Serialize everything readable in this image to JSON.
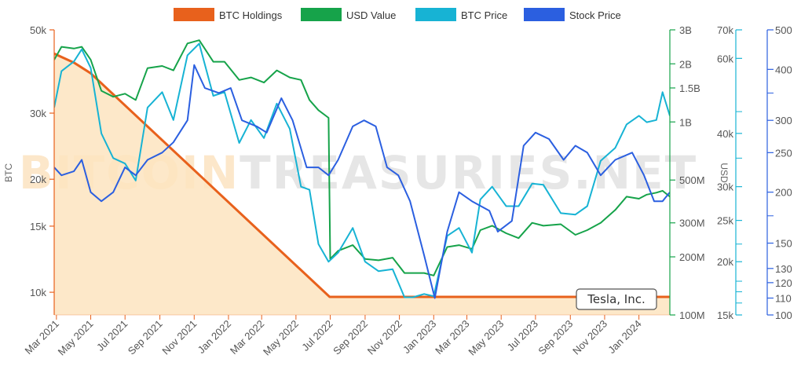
{
  "chart_data": {
    "type": "line",
    "legend_position": "top",
    "legend": [
      {
        "name": "BTC Holdings",
        "color": "#e8611c"
      },
      {
        "name": "USD Value",
        "color": "#16a34a"
      },
      {
        "name": "BTC Price",
        "color": "#17b3d4"
      },
      {
        "name": "Stock Price",
        "color": "#2b5fe0"
      }
    ],
    "watermark": {
      "part1": "BITCOIN",
      "part2": "TREASURIES.NET"
    },
    "company_label": "Tesla, Inc.",
    "x_ticks": [
      "Mar 2021",
      "May 2021",
      "Jul 2021",
      "Sep 2021",
      "Nov 2021",
      "Jan 2022",
      "Mar 2022",
      "May 2022",
      "Jul 2022",
      "Sep 2022",
      "Nov 2022",
      "Jan 2023",
      "Mar 2023",
      "May 2023",
      "Jul 2023",
      "Sep 2023",
      "Nov 2023",
      "Jan 2024"
    ],
    "axes": {
      "left": {
        "title": "BTC",
        "scale": "log",
        "color": "#e8611c",
        "range": [
          8700,
          50000
        ],
        "ticks": [
          {
            "v": 10000,
            "label": "10k"
          },
          {
            "v": 15000,
            "label": "15k"
          },
          {
            "v": 20000,
            "label": "20k"
          },
          {
            "v": 30000,
            "label": "30k"
          },
          {
            "v": 50000,
            "label": "50k"
          }
        ]
      },
      "usd": {
        "title": "USD",
        "scale": "log",
        "color": "#16a34a",
        "range": [
          100000000,
          3000000000
        ],
        "ticks": [
          {
            "v": 3000000000,
            "label": "3B"
          },
          {
            "v": 2000000000,
            "label": "2B"
          },
          {
            "v": 1500000000,
            "label": "1.5B"
          },
          {
            "v": 1000000000,
            "label": "1B"
          },
          {
            "v": 500000000,
            "label": "500M"
          },
          {
            "v": 300000000,
            "label": "300M"
          },
          {
            "v": 200000000,
            "label": "200M"
          },
          {
            "v": 100000000,
            "label": "100M"
          }
        ]
      },
      "btc_price": {
        "scale": "log",
        "color": "#17b3d4",
        "range": [
          15000,
          70000
        ],
        "ticks": [
          {
            "v": 70000,
            "label": "70k"
          },
          {
            "v": 60000,
            "label": "60k"
          },
          {
            "v": 40000,
            "label": "40k"
          },
          {
            "v": 30000,
            "label": "30k"
          },
          {
            "v": 25000,
            "label": "25k"
          },
          {
            "v": 20000,
            "label": "20k"
          },
          {
            "v": 15000,
            "label": "15k"
          }
        ]
      },
      "stock_price": {
        "scale": "log",
        "color": "#2b5fe0",
        "range": [
          100,
          500
        ],
        "ticks": [
          {
            "v": 500,
            "label": "500"
          },
          {
            "v": 400,
            "label": "400"
          },
          {
            "v": 300,
            "label": "300"
          },
          {
            "v": 250,
            "label": "250"
          },
          {
            "v": 200,
            "label": "200"
          },
          {
            "v": 150,
            "label": "150"
          },
          {
            "v": 130,
            "label": "130"
          },
          {
            "v": 120,
            "label": "120"
          },
          {
            "v": 110,
            "label": "110"
          },
          {
            "v": 100,
            "label": "100"
          }
        ]
      }
    },
    "series": [
      {
        "name": "BTC Holdings",
        "axis": "left",
        "type": "area",
        "x": [
          "2021-02-25",
          "2021-04-01",
          "2021-05-01",
          "2022-06-30",
          "2022-07-20",
          "2023-06-01",
          "2024-02-25"
        ],
        "values": [
          43200,
          40900,
          38300,
          9720,
          9720,
          9720,
          9720
        ]
      },
      {
        "name": "USD Value",
        "axis": "usd",
        "x": [
          "2021-02-25",
          "2021-03-10",
          "2021-04-01",
          "2021-04-15",
          "2021-05-01",
          "2021-05-20",
          "2021-06-10",
          "2021-07-01",
          "2021-07-20",
          "2021-08-10",
          "2021-09-05",
          "2021-09-25",
          "2021-10-20",
          "2021-11-10",
          "2021-12-05",
          "2021-12-25",
          "2022-01-20",
          "2022-02-10",
          "2022-03-05",
          "2022-03-28",
          "2022-04-20",
          "2022-05-10",
          "2022-05-25",
          "2022-06-10",
          "2022-06-28",
          "2022-07-01",
          "2022-07-15",
          "2022-08-10",
          "2022-09-01",
          "2022-09-25",
          "2022-10-20",
          "2022-11-10",
          "2022-11-25",
          "2022-12-15",
          "2023-01-01",
          "2023-01-25",
          "2023-02-15",
          "2023-03-10",
          "2023-03-25",
          "2023-04-15",
          "2023-05-10",
          "2023-06-01",
          "2023-06-25",
          "2023-07-15",
          "2023-08-15",
          "2023-09-10",
          "2023-10-01",
          "2023-10-25",
          "2023-11-20",
          "2023-12-10",
          "2024-01-01",
          "2024-01-15",
          "2024-02-01",
          "2024-02-12",
          "2024-02-25"
        ],
        "values": [
          2100000000,
          2450000000,
          2400000000,
          2450000000,
          2100000000,
          1450000000,
          1350000000,
          1400000000,
          1300000000,
          1900000000,
          1950000000,
          1850000000,
          2550000000,
          2650000000,
          2050000000,
          2050000000,
          1650000000,
          1700000000,
          1600000000,
          1850000000,
          1700000000,
          1650000000,
          1300000000,
          1150000000,
          1050000000,
          195000000,
          215000000,
          230000000,
          195000000,
          192000000,
          198000000,
          165000000,
          165000000,
          165000000,
          160000000,
          225000000,
          230000000,
          220000000,
          275000000,
          290000000,
          265000000,
          250000000,
          300000000,
          290000000,
          295000000,
          260000000,
          275000000,
          300000000,
          350000000,
          410000000,
          400000000,
          420000000,
          430000000,
          440000000,
          410000000
        ]
      },
      {
        "name": "BTC Price",
        "axis": "btc_price",
        "x": [
          "2021-02-25",
          "2021-03-10",
          "2021-04-01",
          "2021-04-15",
          "2021-05-01",
          "2021-05-20",
          "2021-06-10",
          "2021-07-01",
          "2021-07-20",
          "2021-08-10",
          "2021-09-05",
          "2021-09-25",
          "2021-10-20",
          "2021-11-10",
          "2021-12-05",
          "2021-12-25",
          "2022-01-20",
          "2022-02-10",
          "2022-03-05",
          "2022-03-28",
          "2022-04-20",
          "2022-05-10",
          "2022-05-25",
          "2022-06-10",
          "2022-06-28",
          "2022-07-15",
          "2022-08-10",
          "2022-09-01",
          "2022-09-25",
          "2022-10-20",
          "2022-11-10",
          "2022-11-25",
          "2022-12-15",
          "2023-01-01",
          "2023-01-25",
          "2023-02-15",
          "2023-03-10",
          "2023-03-25",
          "2023-04-15",
          "2023-05-10",
          "2023-06-01",
          "2023-06-25",
          "2023-07-15",
          "2023-08-15",
          "2023-09-10",
          "2023-10-01",
          "2023-10-25",
          "2023-11-20",
          "2023-12-10",
          "2024-01-01",
          "2024-01-15",
          "2024-02-01",
          "2024-02-12",
          "2024-02-25"
        ],
        "values": [
          46000,
          56000,
          59000,
          63000,
          57000,
          40000,
          35000,
          34000,
          31000,
          46000,
          50000,
          43000,
          61000,
          65000,
          49000,
          50000,
          38000,
          43000,
          39000,
          47000,
          41000,
          30000,
          29500,
          22000,
          20000,
          21000,
          24000,
          20000,
          19000,
          19200,
          16500,
          16500,
          16800,
          16600,
          23000,
          24000,
          21000,
          28000,
          30000,
          27000,
          27000,
          30500,
          30300,
          26000,
          25800,
          27000,
          34500,
          37000,
          42000,
          44000,
          42500,
          43000,
          50000,
          44000
        ]
      },
      {
        "name": "Stock Price",
        "axis": "stock_price",
        "x": [
          "2021-02-25",
          "2021-03-10",
          "2021-04-01",
          "2021-04-15",
          "2021-05-01",
          "2021-05-20",
          "2021-06-10",
          "2021-07-01",
          "2021-07-20",
          "2021-08-10",
          "2021-09-05",
          "2021-09-25",
          "2021-10-20",
          "2021-11-01",
          "2021-11-20",
          "2021-12-15",
          "2022-01-05",
          "2022-01-25",
          "2022-02-20",
          "2022-03-10",
          "2022-04-05",
          "2022-04-25",
          "2022-05-20",
          "2022-06-10",
          "2022-06-28",
          "2022-07-15",
          "2022-08-10",
          "2022-08-30",
          "2022-09-20",
          "2022-10-10",
          "2022-10-30",
          "2022-11-20",
          "2022-12-15",
          "2023-01-03",
          "2023-01-25",
          "2023-02-15",
          "2023-03-10",
          "2023-04-10",
          "2023-04-25",
          "2023-05-20",
          "2023-06-10",
          "2023-07-01",
          "2023-07-25",
          "2023-08-20",
          "2023-09-10",
          "2023-10-01",
          "2023-10-25",
          "2023-11-20",
          "2023-12-20",
          "2024-01-10",
          "2024-01-28",
          "2024-02-12",
          "2024-02-25"
        ],
        "values": [
          230,
          220,
          225,
          240,
          200,
          190,
          200,
          230,
          220,
          240,
          250,
          265,
          300,
          410,
          360,
          350,
          360,
          300,
          290,
          280,
          340,
          300,
          230,
          230,
          220,
          240,
          290,
          300,
          290,
          230,
          220,
          190,
          140,
          110,
          160,
          200,
          190,
          180,
          160,
          170,
          260,
          280,
          270,
          240,
          260,
          250,
          220,
          240,
          250,
          220,
          190,
          190,
          200
        ]
      }
    ]
  }
}
